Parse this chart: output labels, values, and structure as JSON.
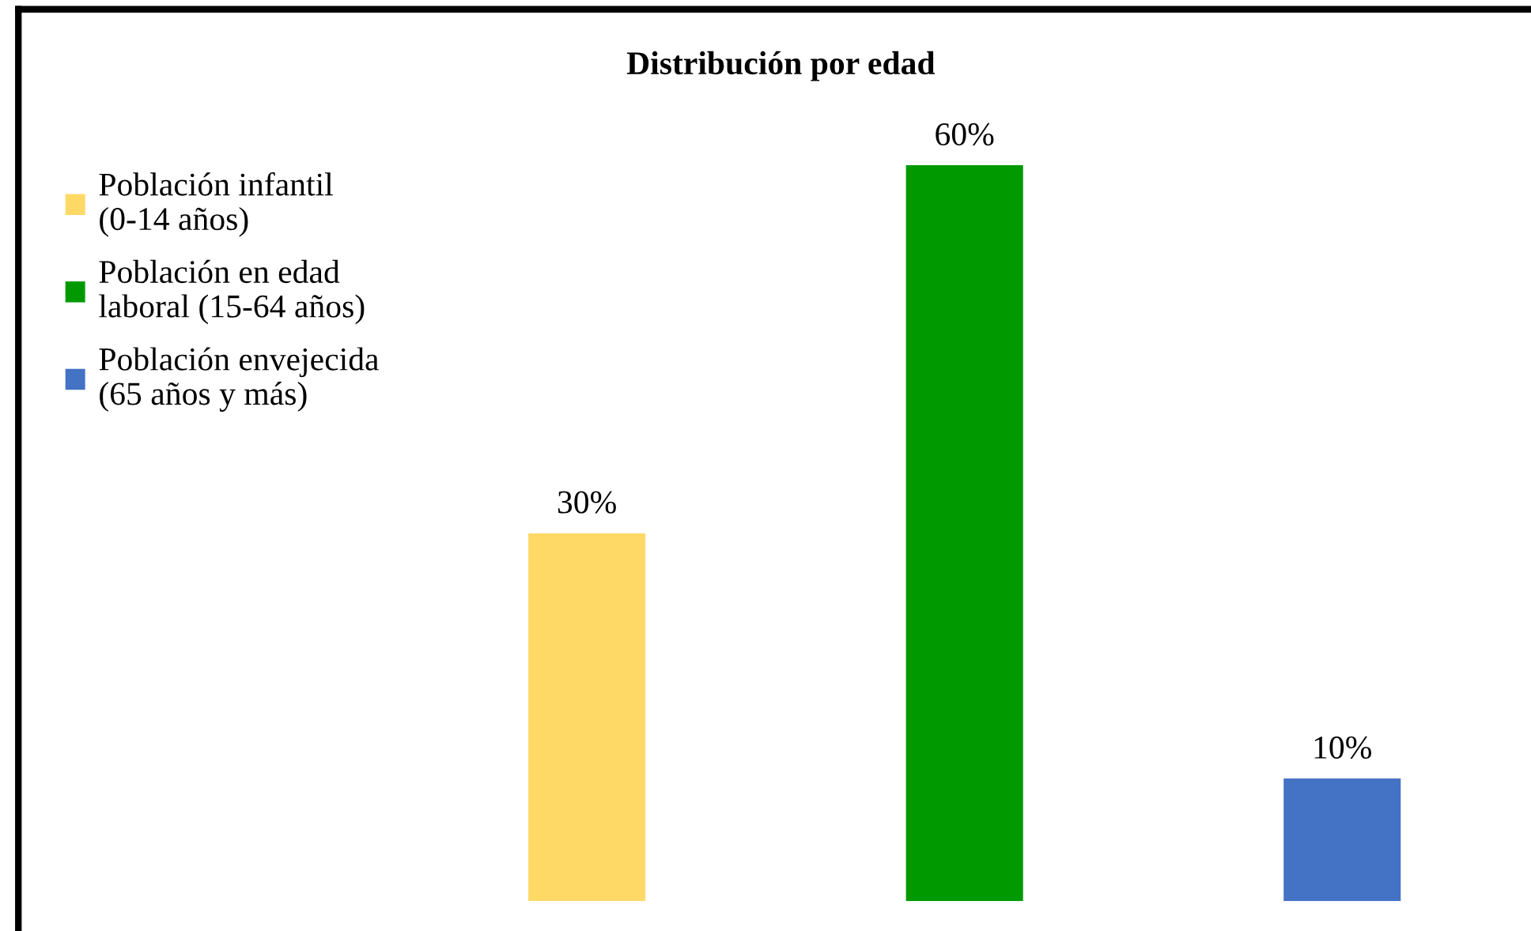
{
  "chart_data": {
    "type": "bar",
    "title": "Distribución por edad",
    "categories": [
      null,
      null,
      null
    ],
    "series": [
      {
        "name": "Población infantil\n(0-14 años)",
        "color": "#ffd966",
        "values": [
          30,
          null,
          null
        ],
        "value_labels": [
          "30%",
          null,
          null
        ]
      },
      {
        "name": "Población en edad\nlaboral (15-64 años)",
        "color": "#009900",
        "values": [
          null,
          60,
          null
        ],
        "value_labels": [
          null,
          "60%",
          null
        ]
      },
      {
        "name": "Población envejecida\n(65 años y más)",
        "color": "#4472c4",
        "values": [
          null,
          null,
          10
        ],
        "value_labels": [
          null,
          null,
          "10%"
        ]
      }
    ],
    "stacked": true,
    "legend": "left",
    "tick_labels": false
  }
}
